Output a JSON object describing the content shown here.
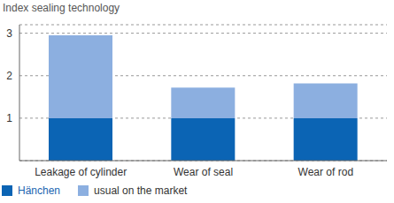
{
  "chart_data": {
    "type": "bar",
    "ylabel": "Index sealing technology",
    "categories": [
      "Leakage of cylinder",
      "Wear of seal",
      "Wear of rod"
    ],
    "series": [
      {
        "name": "Hänchen",
        "color": "#0b64b4",
        "values": [
          1,
          1,
          1
        ]
      },
      {
        "name": "usual on the market",
        "color": "#8cafe0",
        "values": [
          1.95,
          0.72,
          0.82
        ]
      }
    ],
    "stacked": true,
    "ylim": [
      0,
      3.2
    ],
    "yticks": [
      1,
      2,
      3
    ],
    "grid": true,
    "legend": "bottom-left"
  }
}
